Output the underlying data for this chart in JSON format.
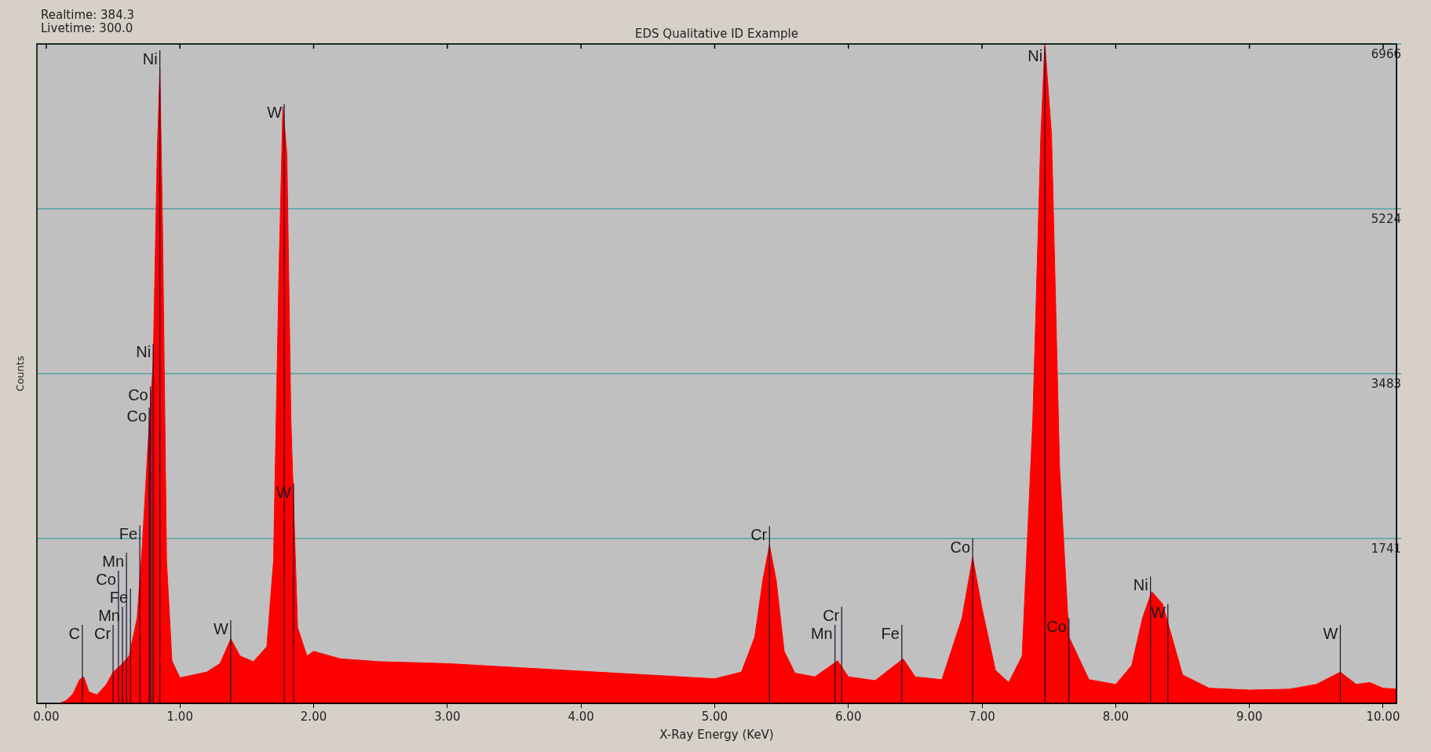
{
  "chart_data": {
    "type": "area",
    "title": "EDS Qualitative ID Example",
    "xlabel": "X-Ray Energy (KeV)",
    "ylabel": "Counts",
    "annotations": [
      "Realtime: 384.3",
      "Livetime: 300.0"
    ],
    "ref_lines": [
      {
        "axis": "x",
        "value": 0.27,
        "label": "C"
      },
      {
        "axis": "x",
        "value": 0.5,
        "label": "Cr"
      },
      {
        "axis": "x",
        "value": 0.57,
        "label": "Mn"
      },
      {
        "axis": "x",
        "value": 0.63,
        "label": "Fe"
      },
      {
        "axis": "x",
        "value": 0.54,
        "label": "Co"
      },
      {
        "axis": "x",
        "value": 0.6,
        "label": "Mn"
      },
      {
        "axis": "x",
        "value": 0.7,
        "label": "Fe"
      },
      {
        "axis": "x",
        "value": 0.78,
        "label": "Co"
      },
      {
        "axis": "x",
        "value": 0.77,
        "label": "Co"
      },
      {
        "axis": "x",
        "value": 0.8,
        "label": "Ni"
      },
      {
        "axis": "x",
        "value": 0.85,
        "label": "Ni"
      },
      {
        "axis": "x",
        "value": 1.38,
        "label": "W"
      },
      {
        "axis": "x",
        "value": 1.78,
        "label": "W"
      },
      {
        "axis": "x",
        "value": 1.85,
        "label": "W"
      },
      {
        "axis": "x",
        "value": 5.41,
        "label": "Cr"
      },
      {
        "axis": "x",
        "value": 5.9,
        "label": "Mn"
      },
      {
        "axis": "x",
        "value": 5.95,
        "label": "Cr"
      },
      {
        "axis": "x",
        "value": 6.4,
        "label": "Fe"
      },
      {
        "axis": "x",
        "value": 6.93,
        "label": "Co"
      },
      {
        "axis": "x",
        "value": 7.47,
        "label": "Ni"
      },
      {
        "axis": "x",
        "value": 7.65,
        "label": "Co"
      },
      {
        "axis": "x",
        "value": 8.26,
        "label": "Ni"
      },
      {
        "axis": "x",
        "value": 8.39,
        "label": "W"
      },
      {
        "axis": "x",
        "value": 9.68,
        "label": "W"
      }
    ],
    "xlim": [
      -0.07,
      10.1
    ],
    "ylim": [
      0,
      6966
    ],
    "xticks": [
      {
        "value": 0,
        "label": "0.00"
      },
      {
        "value": 1,
        "label": "1.00"
      },
      {
        "value": 2,
        "label": "2.00"
      },
      {
        "value": 3,
        "label": "3.00"
      },
      {
        "value": 4,
        "label": "4.00"
      },
      {
        "value": 5,
        "label": "5.00"
      },
      {
        "value": 6,
        "label": "6.00"
      },
      {
        "value": 7,
        "label": "7.00"
      },
      {
        "value": 8,
        "label": "8.00"
      },
      {
        "value": 9,
        "label": "9.00"
      },
      {
        "value": 10,
        "label": "10.00"
      }
    ],
    "yticks": [
      1741,
      3483,
      5224,
      6966
    ],
    "grid": "y",
    "legend": false,
    "series": [
      {
        "color": "#ff0000",
        "x": [
          0.1,
          0.15,
          0.2,
          0.25,
          0.28,
          0.32,
          0.38,
          0.45,
          0.5,
          0.55,
          0.62,
          0.68,
          0.72,
          0.76,
          0.8,
          0.83,
          0.85,
          0.87,
          0.9,
          0.94,
          1.0,
          1.1,
          1.2,
          1.3,
          1.38,
          1.45,
          1.55,
          1.65,
          1.7,
          1.74,
          1.77,
          1.8,
          1.83,
          1.88,
          1.95,
          2.0,
          2.2,
          2.5,
          3.0,
          3.5,
          4.0,
          4.5,
          5.0,
          5.2,
          5.3,
          5.36,
          5.41,
          5.46,
          5.52,
          5.6,
          5.75,
          5.92,
          6.0,
          6.2,
          6.41,
          6.5,
          6.7,
          6.85,
          6.93,
          7.0,
          7.1,
          7.2,
          7.3,
          7.38,
          7.44,
          7.47,
          7.52,
          7.58,
          7.65,
          7.8,
          8.0,
          8.12,
          8.2,
          8.27,
          8.35,
          8.42,
          8.5,
          8.7,
          9.0,
          9.3,
          9.5,
          9.68,
          9.8,
          9.9,
          10.0,
          10.1
        ],
        "values": [
          0,
          30,
          100,
          250,
          280,
          120,
          90,
          200,
          330,
          390,
          500,
          900,
          1700,
          2700,
          3600,
          5800,
          6700,
          5000,
          1500,
          450,
          270,
          300,
          330,
          420,
          680,
          500,
          440,
          600,
          1500,
          4500,
          6300,
          5800,
          3000,
          800,
          500,
          550,
          470,
          440,
          420,
          380,
          340,
          300,
          260,
          330,
          700,
          1300,
          1670,
          1300,
          550,
          320,
          280,
          450,
          280,
          240,
          470,
          280,
          250,
          900,
          1540,
          1000,
          350,
          220,
          500,
          3000,
          6000,
          6966,
          6000,
          2500,
          700,
          250,
          200,
          400,
          900,
          1180,
          1050,
          700,
          300,
          160,
          140,
          150,
          200,
          330,
          200,
          220,
          160,
          150
        ]
      }
    ]
  }
}
